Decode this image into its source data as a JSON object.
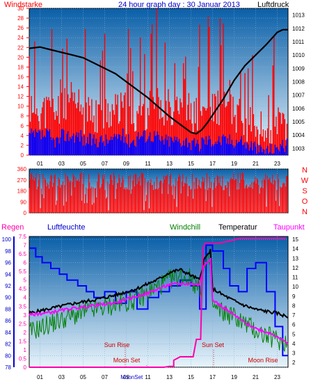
{
  "colors": {
    "wind": "#ff0000",
    "gust": "#0000ff",
    "pressure": "#000000",
    "direction": "#ff0000",
    "rain": "#ff00aa",
    "humidity": "#0000ff",
    "windchill": "#008000",
    "temperature": "#000000",
    "dewpoint": "#ff00ff",
    "bg_top": "#0a5fa8",
    "bg_bottom": "#e8f4fb",
    "event_text": "#cc0000"
  },
  "header": {
    "left_label": "Windstarke",
    "title": "24 hour graph day : 30 Januar 2013",
    "right_label": "Luftdruck"
  },
  "panel3_labels": {
    "rain": "Regen",
    "humidity": "Luftfeuchte",
    "windchill": "Windchill",
    "temperature": "Temperatur",
    "dewpoint": "Taupunkt"
  },
  "events": {
    "sun_rise": "Sun Rise",
    "sun_set": "Sun Set",
    "moon_set": "Moon Set",
    "moon_rise": "Moon Rise",
    "bottom_moon_label": "MoonSet"
  },
  "chart_data": [
    {
      "type": "line",
      "name": "wind-pressure",
      "ylabel_left": "Windstarke",
      "ylabel_right": "Luftdruck",
      "x_ticks": [
        "01",
        "03",
        "05",
        "07",
        "09",
        "11",
        "13",
        "15",
        "17",
        "19",
        "21",
        "23"
      ],
      "y_left_ticks": [
        0,
        2,
        4,
        6,
        8,
        10,
        12,
        14,
        16,
        18,
        20,
        22,
        24,
        26,
        28,
        30
      ],
      "y_right_ticks": [
        1003,
        1004,
        1005,
        1006,
        1007,
        1008,
        1009,
        1010,
        1011,
        1012,
        1013
      ],
      "ylim_left": [
        0,
        30
      ],
      "ylim_right": [
        1002.5,
        1013.5
      ],
      "pressure_hours": [
        0,
        1,
        2,
        3,
        4,
        5,
        6,
        7,
        8,
        9,
        10,
        11,
        12,
        13,
        14,
        15,
        15.5,
        16,
        16.5,
        17,
        18,
        19,
        20,
        21,
        22,
        23,
        23.5,
        24
      ],
      "pressure_values": [
        1010.5,
        1010.6,
        1010.4,
        1010.2,
        1010.0,
        1009.8,
        1009.4,
        1009.0,
        1008.6,
        1008.0,
        1007.4,
        1006.8,
        1006.1,
        1005.4,
        1004.8,
        1004.2,
        1004.1,
        1004.4,
        1004.9,
        1005.5,
        1006.7,
        1008.1,
        1009.2,
        1010.0,
        1010.8,
        1011.7,
        1011.9,
        1011.9
      ],
      "wind_base": [
        10,
        9,
        9,
        11,
        10,
        8,
        8,
        9,
        9,
        8,
        9,
        10,
        10,
        10,
        9,
        8,
        9,
        10,
        9,
        8,
        6,
        5,
        5,
        6,
        7
      ],
      "gust_base": [
        4,
        4,
        3,
        4,
        4,
        3,
        3,
        3,
        4,
        3,
        4,
        4,
        3,
        3,
        3,
        2,
        3,
        3,
        3,
        3,
        2,
        1,
        1,
        2,
        3
      ]
    },
    {
      "type": "bar",
      "name": "wind-direction",
      "y_ticks": [
        0,
        90,
        180,
        270,
        360
      ],
      "ylim": [
        0,
        360
      ],
      "direction_labels": [
        "N",
        "W",
        "S",
        "O",
        "N"
      ],
      "x_ticks": [
        "01",
        "03",
        "05",
        "07",
        "09",
        "11",
        "13",
        "15",
        "17",
        "19",
        "21",
        "23"
      ],
      "dir_base_degrees": 260
    },
    {
      "type": "line",
      "name": "temperature-humidity",
      "x_ticks": [
        "01",
        "03",
        "05",
        "07",
        "09",
        "11",
        "13",
        "15",
        "17",
        "19",
        "21",
        "23"
      ],
      "y_humidity_ticks": [
        78,
        80,
        82,
        84,
        86,
        88,
        90,
        92,
        94,
        96,
        98,
        100
      ],
      "y_rain_ticks": [
        0,
        0.5,
        1,
        1.5,
        2,
        2.5,
        3,
        3.5,
        4,
        4.5,
        5,
        5.5,
        6,
        6.5,
        7,
        7.5
      ],
      "y_temp_ticks": [
        2,
        3,
        4,
        5,
        6,
        7,
        8,
        9,
        10,
        11,
        12,
        13,
        14,
        15
      ],
      "ylim_humidity": [
        78,
        100.5
      ],
      "ylim_rain": [
        0,
        7.5
      ],
      "ylim_temp": [
        1.5,
        15.3
      ],
      "series": [
        {
          "name": "Luftfeuchte",
          "hours": [
            0,
            0.6,
            0.6,
            1.2,
            1.2,
            2.0,
            2.0,
            2.8,
            2.8,
            3.5,
            3.5,
            4.5,
            4.5,
            5.3,
            5.3,
            6.0,
            6.0,
            7.0,
            7.0,
            8.0,
            8.0,
            9.0,
            9.0,
            10.0,
            10.0,
            11.0,
            11.0,
            12.0,
            12.0,
            13.0,
            13.0,
            14.0,
            14.0,
            15.0,
            15.0,
            15.8,
            15.8,
            16.4,
            16.4,
            17.0,
            17.0,
            18.0,
            18.0,
            18.6,
            18.6,
            19.4,
            19.4,
            20.2,
            20.2,
            21.0,
            21.0,
            22.0,
            22.0,
            22.8,
            22.8,
            23.5,
            23.5,
            24.0
          ],
          "values": [
            98.5,
            98.5,
            97,
            97,
            96,
            96,
            95,
            95,
            94,
            94,
            93,
            93,
            92,
            92,
            91,
            91,
            90,
            90,
            91,
            91,
            89,
            89,
            91,
            91,
            88,
            88,
            90,
            90,
            91,
            91,
            92,
            92,
            93,
            93,
            92,
            92,
            88,
            88,
            99,
            99,
            98,
            98,
            95,
            95,
            92,
            92,
            91,
            91,
            95,
            95,
            96,
            96,
            91,
            91,
            85,
            85,
            80,
            80
          ]
        },
        {
          "name": "Temperatur",
          "hours": [
            0,
            2,
            4,
            6,
            8,
            10,
            11,
            12,
            13,
            14,
            15,
            15.8,
            16.2,
            16.8,
            17,
            18,
            19,
            20,
            21,
            22,
            23,
            24
          ],
          "values": [
            7.2,
            7.7,
            8.2,
            8.6,
            9.1,
            9.8,
            10.3,
            10.8,
            11.5,
            11.8,
            11.2,
            10.7,
            12.8,
            13.8,
            9.8,
            9.1,
            8.5,
            8.0,
            7.6,
            7.4,
            7.2,
            6.8
          ]
        },
        {
          "name": "Windchill",
          "hours": [
            0,
            2,
            4,
            6,
            8,
            10,
            11,
            12,
            13,
            14,
            15,
            15.8,
            16.2,
            16.8,
            17,
            18,
            19,
            20,
            21,
            22,
            23,
            24
          ],
          "values": [
            5.2,
            6.1,
            6.9,
            7.6,
            8.1,
            8.7,
            9.3,
            10.1,
            10.7,
            11.1,
            10.9,
            9.6,
            11.9,
            12.8,
            7.8,
            7.3,
            6.9,
            6.1,
            5.4,
            4.8,
            4.4,
            4.1
          ]
        },
        {
          "name": "Taupunkt",
          "hours": [
            0,
            2,
            4,
            6,
            8,
            10,
            11,
            12,
            13,
            14,
            15,
            15.8,
            16.2,
            16.8,
            17,
            18,
            19,
            20,
            21,
            22,
            23,
            24
          ],
          "values": [
            7.0,
            7.3,
            7.7,
            8.0,
            8.3,
            9.0,
            9.3,
            9.8,
            10.2,
            10.3,
            10.3,
            10.2,
            12.3,
            13.0,
            8.6,
            7.8,
            7.0,
            6.2,
            5.6,
            5.2,
            4.8,
            3.9
          ]
        },
        {
          "name": "Regen",
          "hours": [
            0,
            12.5,
            13.0,
            13.4,
            13.4,
            14.0,
            15.2,
            15.5,
            15.9,
            16.1,
            16.3,
            17.5,
            19.0,
            19.5,
            23.8
          ],
          "values": [
            0,
            0,
            0.05,
            0.05,
            0.4,
            0.6,
            0.6,
            1.6,
            1.6,
            6.8,
            7.1,
            7.1,
            7.3,
            7.4,
            7.4
          ]
        }
      ]
    }
  ]
}
